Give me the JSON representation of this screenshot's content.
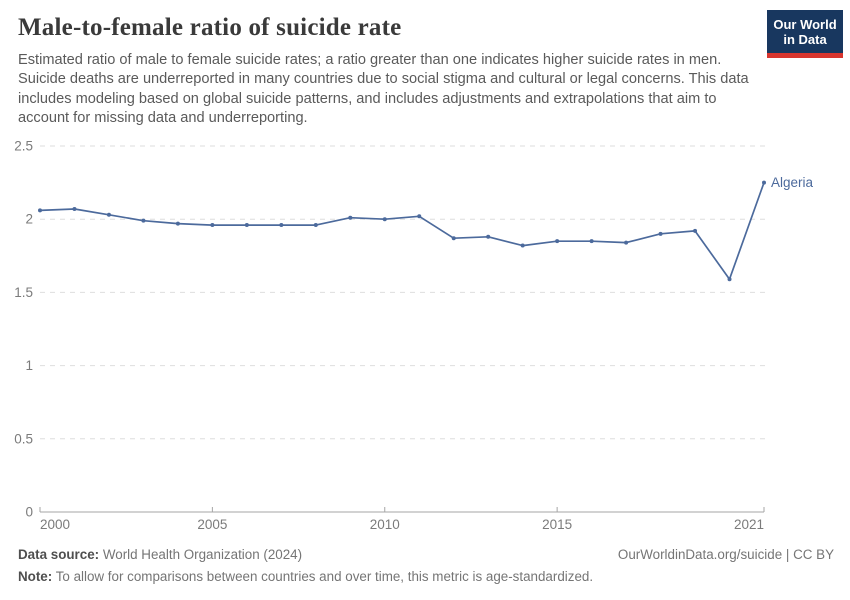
{
  "header": {
    "title": "Male-to-female ratio of suicide rate",
    "subtitle": "Estimated ratio of male to female suicide rates; a ratio greater than one indicates higher suicide rates in men. Suicide deaths are underreported in many countries due to social stigma and cultural or legal concerns. This data includes modeling based on global suicide patterns, and includes adjustments and extrapolations that aim to account for missing data and underreporting.",
    "logo": {
      "line1": "Our World",
      "line2": "in Data"
    }
  },
  "chart_data": {
    "type": "line",
    "title": "Male-to-female ratio of suicide rate",
    "xlabel": "",
    "ylabel": "",
    "x": [
      2000,
      2001,
      2002,
      2003,
      2004,
      2005,
      2006,
      2007,
      2008,
      2009,
      2010,
      2011,
      2012,
      2013,
      2014,
      2015,
      2016,
      2017,
      2018,
      2019,
      2020,
      2021
    ],
    "series": [
      {
        "name": "Algeria",
        "color": "#4c6a9c",
        "values": [
          2.06,
          2.07,
          2.03,
          1.99,
          1.97,
          1.96,
          1.96,
          1.96,
          1.96,
          2.01,
          2.0,
          2.02,
          1.87,
          1.88,
          1.82,
          1.85,
          1.85,
          1.84,
          1.9,
          1.92,
          1.59,
          2.25
        ]
      }
    ],
    "ylim": [
      0,
      2.5
    ],
    "yticks": [
      0,
      0.5,
      1,
      1.5,
      2,
      2.5
    ],
    "ytick_labels": [
      "0",
      "0.5",
      "1",
      "1.5",
      "2",
      "2.5"
    ],
    "xticks": [
      2000,
      2005,
      2010,
      2015,
      2021
    ],
    "grid": "horizontal-dashed",
    "legend": "end-of-line-label",
    "markers": true
  },
  "footer": {
    "data_source_label": "Data source:",
    "data_source_value": "World Health Organization (2024)",
    "citation": "OurWorldinData.org/suicide | CC BY",
    "note_label": "Note:",
    "note_value": "To allow for comparisons between countries and over time, this metric is age-standardized."
  },
  "colors": {
    "line": "#4c6a9c",
    "axis": "#a5a5a5",
    "grid": "#dedede",
    "tick_label": "#7b7b7b",
    "logo_bg": "#18375f",
    "logo_stripe": "#d8352e"
  }
}
